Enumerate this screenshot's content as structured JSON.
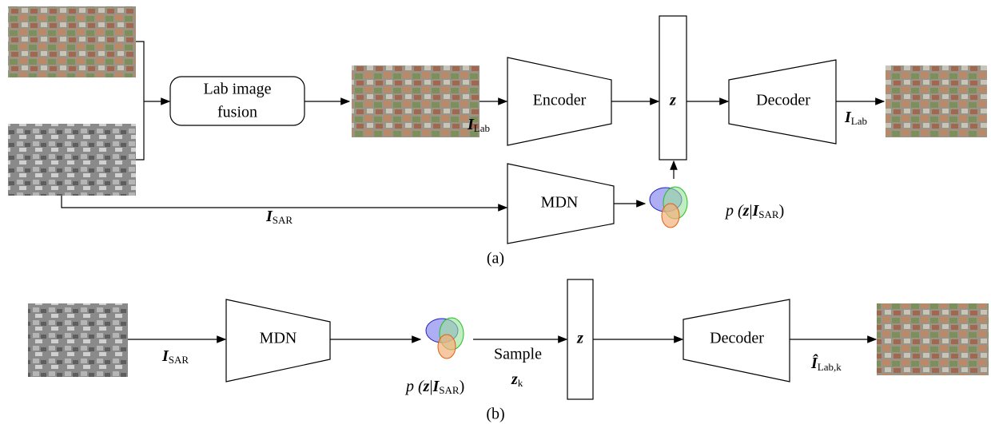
{
  "panel_a": {
    "fusion_box": [
      "Lab image",
      "fusion"
    ],
    "encoder": "Encoder",
    "latent": "z",
    "decoder": "Decoder",
    "mdn": "MDN",
    "lab_input": {
      "symbol": "I",
      "subscript": "Lab"
    },
    "lab_output": {
      "symbol": "I",
      "subscript": "Lab"
    },
    "sar_input": {
      "symbol": "I",
      "subscript": "SAR"
    },
    "prior": {
      "prefix": "p (",
      "var": "z",
      "bar": "|",
      "symbol": "I",
      "subscript": "SAR",
      "suffix": ")"
    },
    "caption": "(a)"
  },
  "panel_b": {
    "mdn": "MDN",
    "latent": "z",
    "decoder": "Decoder",
    "sar_input": {
      "symbol": "I",
      "subscript": "SAR"
    },
    "prior": {
      "prefix": "p (",
      "var": "z",
      "bar": "|",
      "symbol": "I",
      "subscript": "SAR",
      "suffix": ")"
    },
    "sample": "Sample",
    "sample_var": {
      "symbol": "z",
      "subscript": "k"
    },
    "output": {
      "symbol": "Î",
      "subscript": "Lab,k"
    },
    "caption": "(b)"
  }
}
